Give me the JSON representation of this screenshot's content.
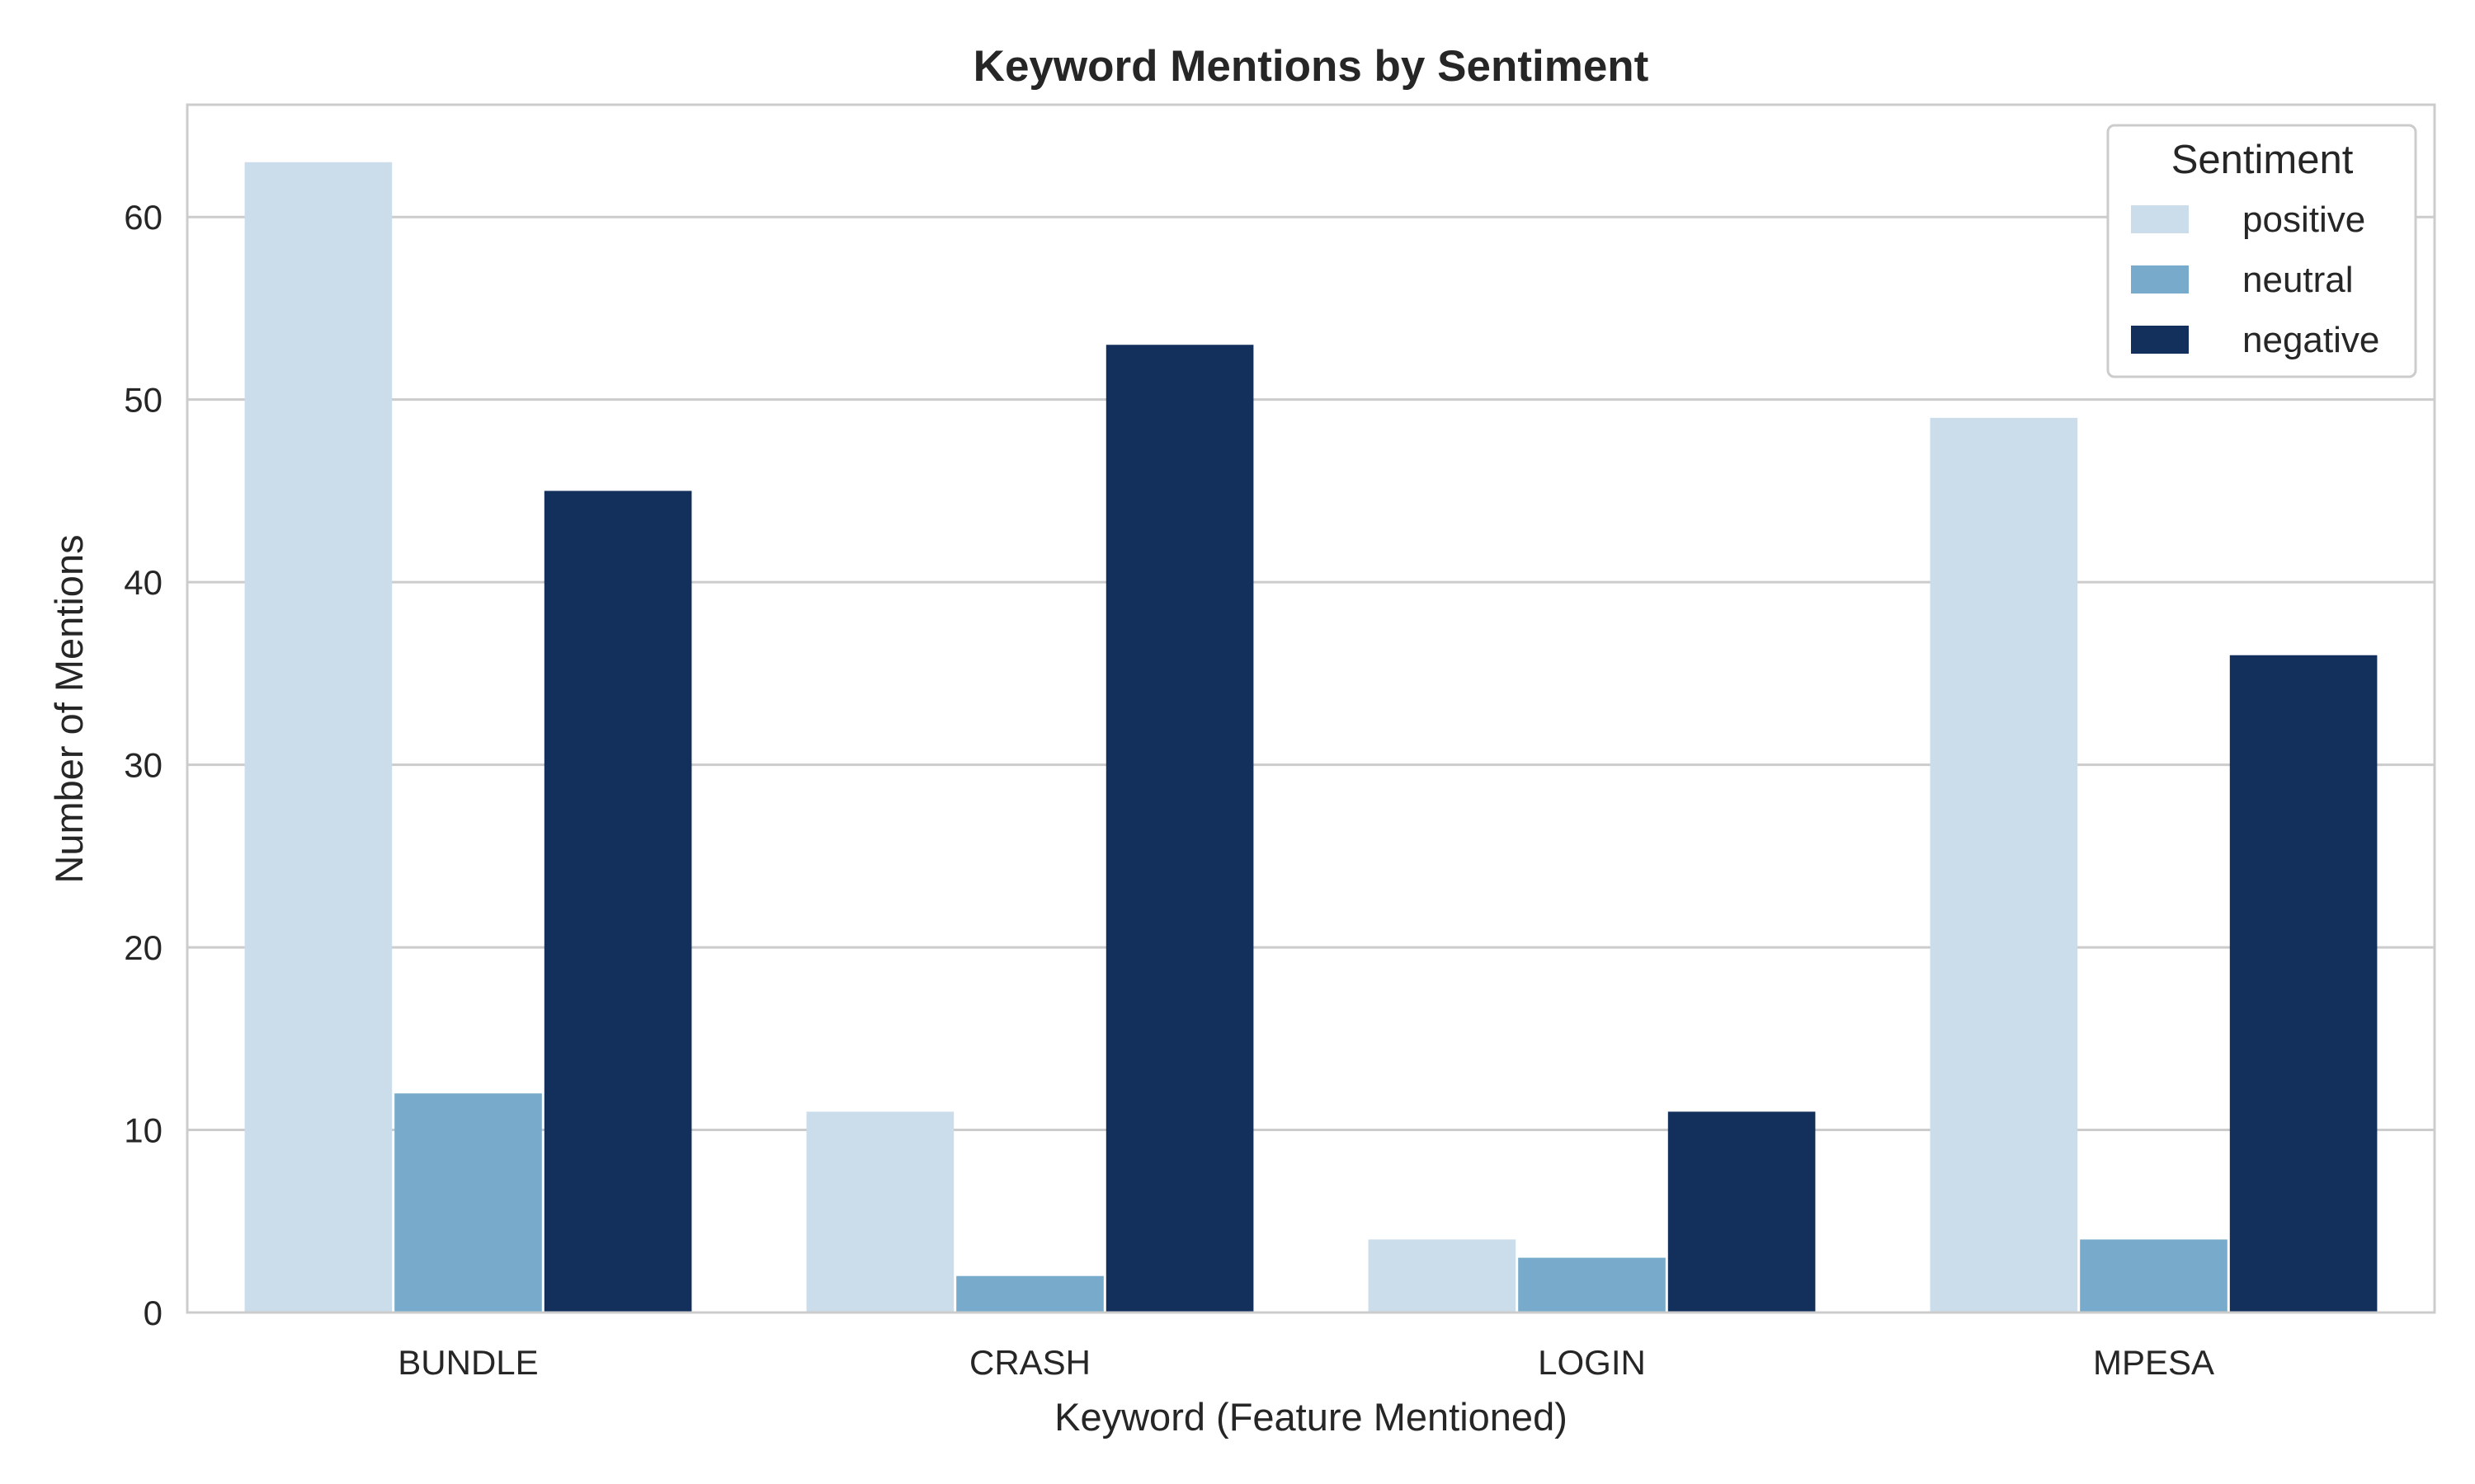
{
  "chart_data": {
    "type": "bar",
    "title": "Keyword Mentions by Sentiment",
    "xlabel": "Keyword (Feature Mentioned)",
    "ylabel": "Number of Mentions",
    "categories": [
      "BUNDLE",
      "CRASH",
      "LOGIN",
      "MPESA"
    ],
    "series": [
      {
        "name": "positive",
        "values": [
          63,
          11,
          4,
          49
        ],
        "color": "#cbdcea"
      },
      {
        "name": "neutral",
        "values": [
          12,
          2,
          3,
          4
        ],
        "color": "#78abcb"
      },
      {
        "name": "negative",
        "values": [
          45,
          53,
          11,
          36
        ],
        "color": "#13305d"
      }
    ],
    "ylim": [
      0,
      66.15
    ],
    "yticks": [
      0,
      10,
      20,
      30,
      40,
      50,
      60
    ],
    "grid": true,
    "legend": {
      "title": "Sentiment",
      "placement": "top-right"
    }
  }
}
